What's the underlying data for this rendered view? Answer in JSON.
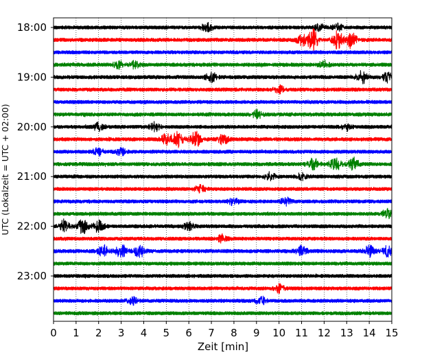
{
  "chart_data": {
    "type": "line",
    "title": "",
    "xlabel": "Zeit  [min]",
    "ylabel": "UTC (Lokalzeit = UTC + 02:00)",
    "xlim": [
      0,
      15
    ],
    "x_ticks": [
      "0",
      "1",
      "2",
      "3",
      "4",
      "5",
      "6",
      "7",
      "8",
      "9",
      "10",
      "11",
      "12",
      "13",
      "14",
      "15"
    ],
    "y_ticks": [
      "18:00",
      "19:00",
      "20:00",
      "21:00",
      "22:00",
      "23:00"
    ],
    "grid": "vertical-dotted",
    "legend": "none",
    "trace_colors": [
      "#000000",
      "#ff0000",
      "#0000ff",
      "#008000"
    ],
    "traces": [
      {
        "start": "18:00",
        "color": "#000000",
        "amplitude": 0.5,
        "events": [
          {
            "x": 6.8,
            "amp": 1.2
          },
          {
            "x": 11.8,
            "amp": 0.9
          },
          {
            "x": 12.6,
            "amp": 0.9
          }
        ]
      },
      {
        "start": "18:15",
        "color": "#ff0000",
        "amplitude": 0.6,
        "events": [
          {
            "x": 11.0,
            "amp": 1.5
          },
          {
            "x": 11.5,
            "amp": 3.0
          },
          {
            "x": 12.6,
            "amp": 2.5
          },
          {
            "x": 13.2,
            "amp": 2.2
          }
        ]
      },
      {
        "start": "18:30",
        "color": "#0000ff",
        "amplitude": 0.5,
        "events": []
      },
      {
        "start": "18:45",
        "color": "#008000",
        "amplitude": 0.6,
        "events": [
          {
            "x": 2.9,
            "amp": 1.0
          },
          {
            "x": 3.6,
            "amp": 0.9
          },
          {
            "x": 12.0,
            "amp": 0.8
          }
        ]
      },
      {
        "start": "19:00",
        "color": "#000000",
        "amplitude": 0.6,
        "events": [
          {
            "x": 7.0,
            "amp": 1.2
          },
          {
            "x": 13.7,
            "amp": 1.6
          },
          {
            "x": 14.8,
            "amp": 1.3
          }
        ]
      },
      {
        "start": "19:15",
        "color": "#ff0000",
        "amplitude": 0.6,
        "events": [
          {
            "x": 10.0,
            "amp": 1.0
          }
        ]
      },
      {
        "start": "19:30",
        "color": "#0000ff",
        "amplitude": 0.5,
        "events": []
      },
      {
        "start": "19:45",
        "color": "#008000",
        "amplitude": 0.6,
        "events": [
          {
            "x": 9.0,
            "amp": 1.1
          }
        ]
      },
      {
        "start": "20:00",
        "color": "#000000",
        "amplitude": 0.5,
        "events": [
          {
            "x": 2.0,
            "amp": 1.0
          },
          {
            "x": 4.5,
            "amp": 1.2
          },
          {
            "x": 13.0,
            "amp": 1.0
          }
        ]
      },
      {
        "start": "20:15",
        "color": "#ff0000",
        "amplitude": 0.6,
        "events": [
          {
            "x": 5.0,
            "amp": 1.4
          },
          {
            "x": 5.5,
            "amp": 2.0
          },
          {
            "x": 6.3,
            "amp": 2.2
          },
          {
            "x": 7.5,
            "amp": 1.4
          }
        ]
      },
      {
        "start": "20:30",
        "color": "#0000ff",
        "amplitude": 0.5,
        "events": [
          {
            "x": 2.0,
            "amp": 1.0
          },
          {
            "x": 3.0,
            "amp": 0.9
          }
        ]
      },
      {
        "start": "20:45",
        "color": "#008000",
        "amplitude": 0.6,
        "events": [
          {
            "x": 11.5,
            "amp": 1.8
          },
          {
            "x": 12.5,
            "amp": 2.0
          },
          {
            "x": 13.3,
            "amp": 1.8
          }
        ]
      },
      {
        "start": "21:00",
        "color": "#000000",
        "amplitude": 0.5,
        "events": [
          {
            "x": 9.6,
            "amp": 1.2
          },
          {
            "x": 11.0,
            "amp": 0.9
          }
        ]
      },
      {
        "start": "21:15",
        "color": "#ff0000",
        "amplitude": 0.5,
        "events": [
          {
            "x": 6.5,
            "amp": 1.0
          }
        ]
      },
      {
        "start": "21:30",
        "color": "#0000ff",
        "amplitude": 0.5,
        "events": [
          {
            "x": 8.0,
            "amp": 1.0
          },
          {
            "x": 10.3,
            "amp": 1.0
          }
        ]
      },
      {
        "start": "21:45",
        "color": "#008000",
        "amplitude": 0.5,
        "events": [
          {
            "x": 14.8,
            "amp": 1.2
          }
        ]
      },
      {
        "start": "22:00",
        "color": "#000000",
        "amplitude": 0.5,
        "events": [
          {
            "x": 0.5,
            "amp": 1.8
          },
          {
            "x": 1.3,
            "amp": 1.9
          },
          {
            "x": 2.0,
            "amp": 1.6
          },
          {
            "x": 6.0,
            "amp": 1.0
          }
        ]
      },
      {
        "start": "22:15",
        "color": "#ff0000",
        "amplitude": 0.5,
        "events": [
          {
            "x": 7.5,
            "amp": 1.2
          }
        ]
      },
      {
        "start": "22:30",
        "color": "#0000ff",
        "amplitude": 0.6,
        "events": [
          {
            "x": 2.2,
            "amp": 1.6
          },
          {
            "x": 3.0,
            "amp": 2.0
          },
          {
            "x": 3.8,
            "amp": 1.6
          },
          {
            "x": 11.0,
            "amp": 1.3
          },
          {
            "x": 14.0,
            "amp": 1.5
          },
          {
            "x": 14.8,
            "amp": 1.4
          }
        ]
      },
      {
        "start": "22:45",
        "color": "#008000",
        "amplitude": 0.5,
        "events": []
      },
      {
        "start": "23:00",
        "color": "#000000",
        "amplitude": 0.5,
        "events": []
      },
      {
        "start": "23:15",
        "color": "#ff0000",
        "amplitude": 0.5,
        "events": [
          {
            "x": 10.0,
            "amp": 1.0
          }
        ]
      },
      {
        "start": "23:30",
        "color": "#0000ff",
        "amplitude": 0.5,
        "events": [
          {
            "x": 3.5,
            "amp": 1.0
          },
          {
            "x": 9.2,
            "amp": 1.1
          }
        ]
      },
      {
        "start": "23:45",
        "color": "#008000",
        "amplitude": 0.5,
        "events": []
      }
    ]
  }
}
